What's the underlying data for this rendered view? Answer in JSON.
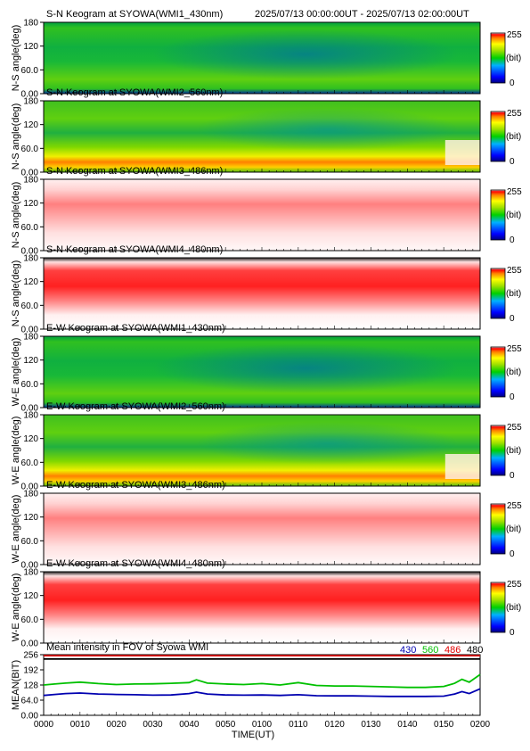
{
  "header": {
    "time_range": "2025/07/13 00:00:00UT - 2025/07/13 02:00:00UT"
  },
  "colorbar": {
    "max_label": "255",
    "unit_label": "(bit)",
    "min_label": "0"
  },
  "chart_data": [
    {
      "type": "heatmap",
      "title": "S-N Keogram at SYOWA(WMI1_430nm)",
      "ylabel": "N-S angle(deg)",
      "yticks": [
        "180",
        "120",
        "60.0",
        "0.00"
      ],
      "ylim": [
        0,
        180
      ],
      "style": "green",
      "xlim_min": [
        0,
        120
      ]
    },
    {
      "type": "heatmap",
      "title": "S-N Keogram at SYOWA(WMI2_560nm)",
      "ylabel": "N-S angle(deg)",
      "yticks": [
        "180",
        "120",
        "60.0",
        "0.00"
      ],
      "ylim": [
        0,
        180
      ],
      "style": "aurora",
      "xlim_min": [
        0,
        120
      ]
    },
    {
      "type": "heatmap",
      "title": "S-N Keogram at SYOWA(WMI3_486nm)",
      "ylabel": "N-S angle(deg)",
      "yticks": [
        "180",
        "120",
        "60.0",
        "0.00"
      ],
      "ylim": [
        0,
        180
      ],
      "style": "pale",
      "xlim_min": [
        0,
        120
      ]
    },
    {
      "type": "heatmap",
      "title": "S-N Keogram at SYOWA(WMI4_480nm)",
      "ylabel": "N-S angle(deg)",
      "yticks": [
        "180",
        "120",
        "60.0",
        "0.00"
      ],
      "ylim": [
        0,
        180
      ],
      "style": "red",
      "xlim_min": [
        0,
        120
      ]
    },
    {
      "type": "heatmap",
      "title": "E-W Keogram at SYOWA(WMI1_430nm)",
      "ylabel": "W-E angle(deg)",
      "yticks": [
        "180",
        "120",
        "60.0",
        "0.00"
      ],
      "ylim": [
        0,
        180
      ],
      "style": "green",
      "xlim_min": [
        0,
        120
      ]
    },
    {
      "type": "heatmap",
      "title": "E-W Keogram at SYOWA(WMI2_560nm)",
      "ylabel": "W-E angle(deg)",
      "yticks": [
        "180",
        "120",
        "60.0",
        "0.00"
      ],
      "ylim": [
        0,
        180
      ],
      "style": "aurora",
      "xlim_min": [
        0,
        120
      ]
    },
    {
      "type": "heatmap",
      "title": "E-W Keogram at SYOWA(WMI3_486nm)",
      "ylabel": "W-E angle(deg)",
      "yticks": [
        "180",
        "120",
        "60.0",
        "0.00"
      ],
      "ylim": [
        0,
        180
      ],
      "style": "pale",
      "xlim_min": [
        0,
        120
      ]
    },
    {
      "type": "heatmap",
      "title": "E-W Keogram at SYOWA(WMI4_480nm)",
      "ylabel": "W-E angle(deg)",
      "yticks": [
        "180",
        "120",
        "60.0",
        "0.00"
      ],
      "ylim": [
        0,
        180
      ],
      "style": "red",
      "xlim_min": [
        0,
        120
      ]
    },
    {
      "type": "line",
      "title": "Mean intensity in FOV of Syowa WMI",
      "ylabel": "MEAN(BIT)",
      "xlabel": "TIME(UT)",
      "ylim": [
        0,
        256
      ],
      "yticks": [
        "256",
        "192",
        "128",
        "64.0",
        "0.00"
      ],
      "xticks": [
        "0000",
        "0010",
        "0020",
        "0030",
        "0040",
        "0050",
        "0100",
        "0110",
        "0120",
        "0130",
        "0140",
        "0150",
        "0200"
      ],
      "xlim_min": [
        0,
        120
      ],
      "series": [
        {
          "name": "430",
          "color": "#0000b0",
          "x": [
            0,
            3,
            6,
            10,
            15,
            20,
            25,
            30,
            35,
            40,
            42,
            45,
            50,
            55,
            60,
            65,
            70,
            75,
            80,
            85,
            90,
            95,
            100,
            105,
            110,
            113,
            115,
            117,
            120
          ],
          "y": [
            84,
            88,
            92,
            94,
            90,
            88,
            87,
            85,
            86,
            92,
            98,
            90,
            86,
            85,
            86,
            84,
            87,
            83,
            82,
            82,
            81,
            80,
            80,
            80,
            81,
            90,
            100,
            92,
            112
          ]
        },
        {
          "name": "560",
          "color": "#00c000",
          "x": [
            0,
            3,
            6,
            10,
            15,
            20,
            25,
            30,
            35,
            40,
            42,
            45,
            50,
            55,
            60,
            65,
            70,
            75,
            80,
            85,
            90,
            95,
            100,
            105,
            110,
            113,
            115,
            117,
            120
          ],
          "y": [
            128,
            132,
            136,
            140,
            134,
            130,
            132,
            133,
            135,
            138,
            150,
            136,
            132,
            130,
            134,
            128,
            138,
            126,
            124,
            124,
            122,
            120,
            118,
            118,
            122,
            135,
            152,
            140,
            172
          ]
        },
        {
          "name": "486",
          "color": "#e00000",
          "x": [
            0,
            120
          ],
          "y": [
            252,
            252
          ]
        },
        {
          "name": "480",
          "color": "#000000",
          "x": [
            0,
            120
          ],
          "y": [
            238,
            238
          ]
        }
      ]
    }
  ]
}
